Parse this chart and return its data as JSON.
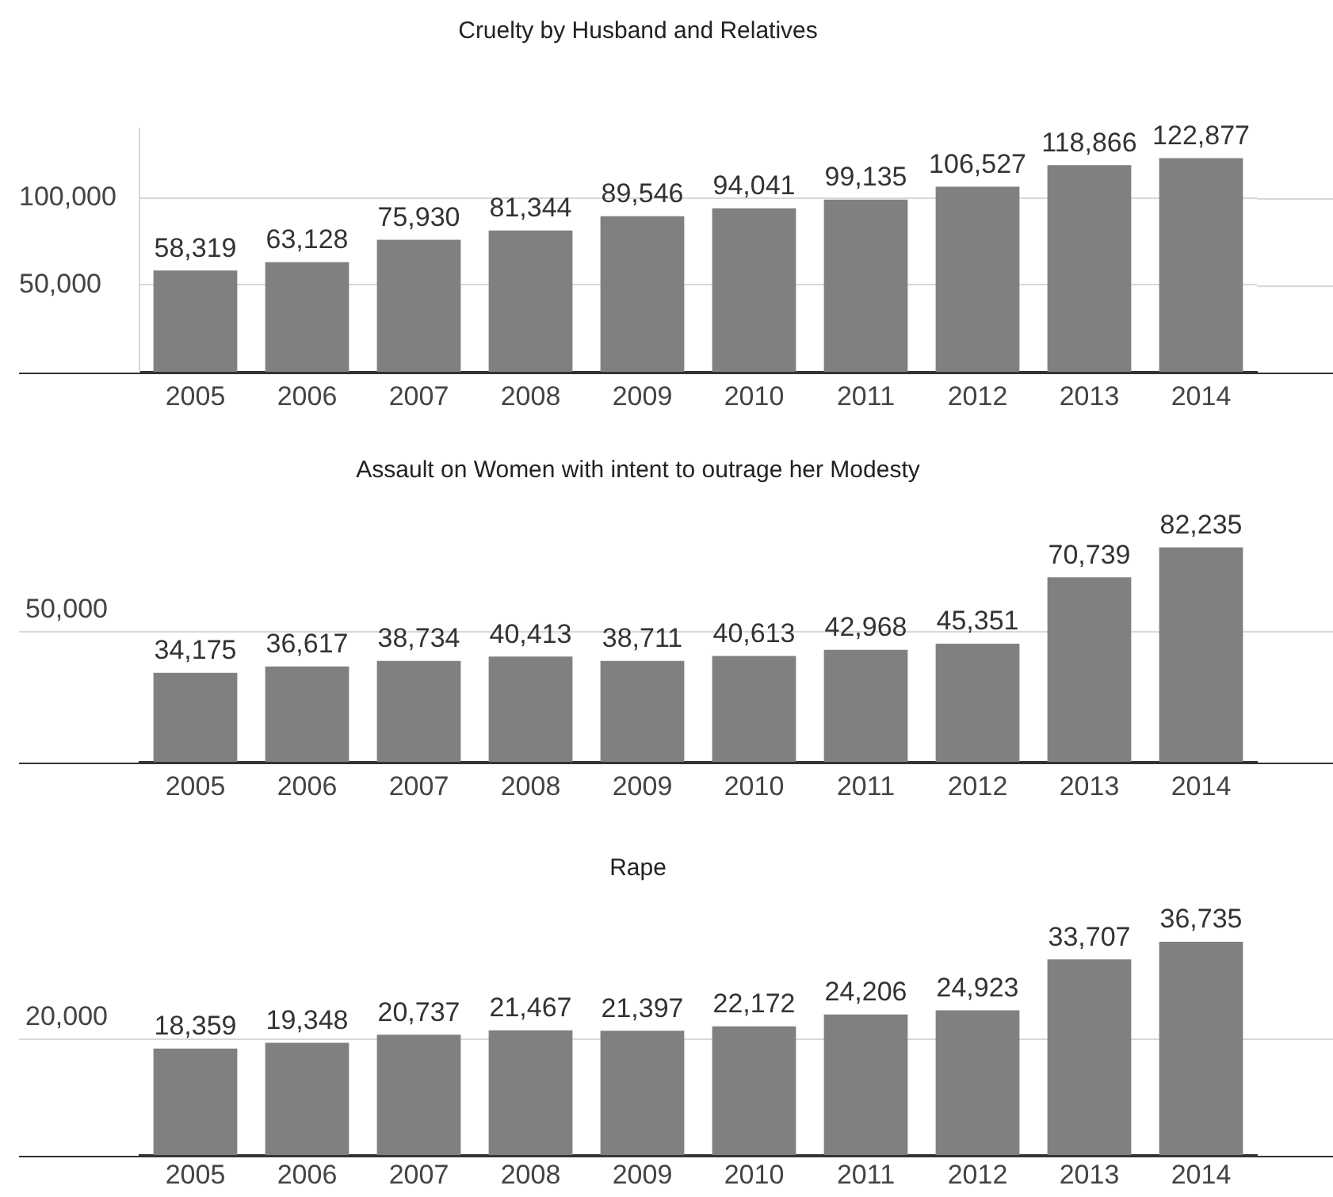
{
  "chart_data": [
    {
      "type": "bar",
      "title": "Cruelty by Husband and Relatives",
      "categories": [
        "2005",
        "2006",
        "2007",
        "2008",
        "2009",
        "2010",
        "2011",
        "2012",
        "2013",
        "2014"
      ],
      "values": [
        58319,
        63128,
        75930,
        81344,
        89546,
        94041,
        99135,
        106527,
        118866,
        122877
      ],
      "value_labels": [
        "58,319",
        "63,128",
        "75,930",
        "81,344",
        "89,546",
        "94,041",
        "99,135",
        "106,527",
        "118,866",
        "122,877"
      ],
      "color": "#808080",
      "ylim": [
        0,
        140000
      ],
      "yticks": [
        {
          "value": 50000,
          "label": "50,000"
        },
        {
          "value": 100000,
          "label": "100,000"
        }
      ],
      "grid": "y"
    },
    {
      "type": "bar",
      "title": "Assault on Women with intent to outrage her Modesty",
      "categories": [
        "2005",
        "2006",
        "2007",
        "2008",
        "2009",
        "2010",
        "2011",
        "2012",
        "2013",
        "2014"
      ],
      "values": [
        34175,
        36617,
        38734,
        40413,
        38711,
        40613,
        42968,
        45351,
        70739,
        82235
      ],
      "value_labels": [
        "34,175",
        "36,617",
        "38,734",
        "40,413",
        "38,711",
        "40,613",
        "42,968",
        "45,351",
        "70,739",
        "82,235"
      ],
      "color": "#808080",
      "ref_lines": [
        {
          "axis": "y",
          "value": 50000,
          "label": "50,000"
        }
      ]
    },
    {
      "type": "bar",
      "title": "Rape",
      "categories": [
        "2005",
        "2006",
        "2007",
        "2008",
        "2009",
        "2010",
        "2011",
        "2012",
        "2013",
        "2014"
      ],
      "values": [
        18359,
        19348,
        20737,
        21467,
        21397,
        22172,
        24206,
        24923,
        33707,
        36735
      ],
      "value_labels": [
        "18,359",
        "19,348",
        "20,737",
        "21,467",
        "21,397",
        "22,172",
        "24,206",
        "24,923",
        "33,707",
        "36,735"
      ],
      "color": "#808080",
      "ref_lines": [
        {
          "axis": "y",
          "value": 20000,
          "label": "20,000"
        }
      ]
    }
  ]
}
